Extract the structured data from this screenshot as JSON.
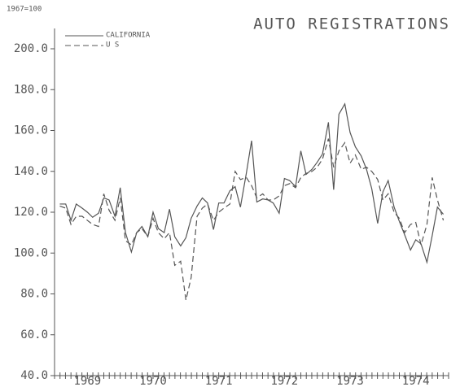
{
  "chart_data": {
    "type": "line",
    "title": "AUTO REGISTRATIONS",
    "subtitle": "1967=100",
    "x": [
      1969.08,
      1969.17,
      1969.25,
      1969.33,
      1969.42,
      1969.5,
      1969.58,
      1969.67,
      1969.75,
      1969.83,
      1969.92,
      1970.0,
      1970.08,
      1970.17,
      1970.25,
      1970.33,
      1970.42,
      1970.5,
      1970.58,
      1970.67,
      1970.75,
      1970.83,
      1970.92,
      1971.0,
      1971.08,
      1971.17,
      1971.25,
      1971.33,
      1971.42,
      1971.5,
      1971.58,
      1971.67,
      1971.75,
      1971.83,
      1971.92,
      1972.0,
      1972.08,
      1972.17,
      1972.25,
      1972.33,
      1972.42,
      1972.5,
      1972.58,
      1972.67,
      1972.75,
      1972.83,
      1972.92,
      1973.0,
      1973.08,
      1973.17,
      1973.25,
      1973.33,
      1973.42,
      1973.5,
      1973.58,
      1973.67,
      1973.75,
      1973.83,
      1973.92,
      1974.0,
      1974.08,
      1974.17,
      1974.25,
      1974.33,
      1974.42,
      1974.5,
      1974.58,
      1974.67,
      1974.75,
      1974.83,
      1974.92
    ],
    "series": [
      {
        "name": "CALIFORNIA",
        "color": "#555555",
        "dash": false,
        "values": [
          124,
          124,
          116,
          124,
          122,
          120,
          117.5,
          119.5,
          127,
          126,
          118,
          132,
          110,
          100.5,
          110,
          113,
          108,
          120,
          112,
          110,
          121.5,
          108,
          103.5,
          107.5,
          117,
          123,
          127,
          124.5,
          111.5,
          124.5,
          124.5,
          130.5,
          132.5,
          122.5,
          139,
          155,
          125,
          126.5,
          126,
          124.5,
          119.5,
          136.5,
          135.5,
          132.5,
          150,
          138.5,
          141,
          144.5,
          148.5,
          164,
          131,
          168,
          173,
          159,
          152,
          147.5,
          141,
          131.5,
          114.5,
          130,
          135.5,
          122.5,
          115.5,
          109,
          101.5,
          106.5,
          104.5,
          95.5,
          108.5,
          122.5,
          119
        ]
      },
      {
        "name": "U S",
        "color": "#555555",
        "dash": true,
        "values": [
          123,
          122,
          114,
          118,
          118,
          116,
          114,
          113,
          129,
          121,
          116,
          127,
          106,
          104,
          110,
          112,
          108,
          117,
          110,
          107,
          110,
          94,
          96,
          77,
          88,
          118,
          122,
          124,
          116,
          120,
          122,
          124,
          140,
          136,
          137,
          133,
          127,
          129,
          126,
          126,
          128,
          133,
          134,
          132,
          137,
          139,
          140,
          142,
          146,
          156,
          142,
          150,
          154,
          144,
          148,
          141,
          142,
          140,
          136,
          126,
          129,
          120,
          117,
          110,
          114,
          115,
          104,
          114,
          137,
          126,
          116
        ]
      }
    ],
    "xlim": [
      1969,
      1975
    ],
    "xticks": [
      {
        "value": 1969.5,
        "label": "1969"
      },
      {
        "value": 1970.5,
        "label": "1970"
      },
      {
        "value": 1971.5,
        "label": "1971"
      },
      {
        "value": 1972.5,
        "label": "1972"
      },
      {
        "value": 1973.5,
        "label": "1973"
      },
      {
        "value": 1974.5,
        "label": "1974"
      }
    ],
    "ylim": [
      40,
      200
    ],
    "yticks": [
      {
        "value": 40,
        "label": "40.0"
      },
      {
        "value": 60,
        "label": "60.0"
      },
      {
        "value": 80,
        "label": "80.0"
      },
      {
        "value": 100,
        "label": "100.0"
      },
      {
        "value": 120,
        "label": "120.0"
      },
      {
        "value": 140,
        "label": "140.0"
      },
      {
        "value": 160,
        "label": "160.0"
      },
      {
        "value": 180,
        "label": "180.0"
      },
      {
        "value": 200,
        "label": "200.0"
      }
    ]
  }
}
